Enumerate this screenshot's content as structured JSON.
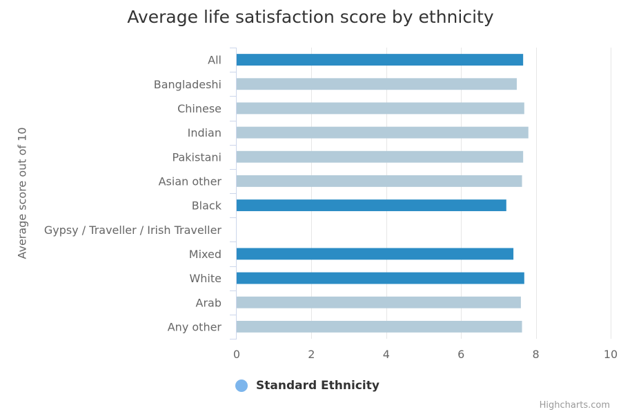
{
  "chart_data": {
    "type": "bar",
    "orientation": "horizontal",
    "title": "Average life satisfaction score by ethnicity",
    "ylabel": "Average score out of 10",
    "xlim": [
      0,
      10
    ],
    "x_ticks": [
      0,
      2,
      4,
      6,
      8,
      10
    ],
    "grid": true,
    "categories": [
      "All",
      "Bangladeshi",
      "Chinese",
      "Indian",
      "Pakistani",
      "Asian other",
      "Black",
      "Gypsy / Traveller / Irish Traveller",
      "Mixed",
      "White",
      "Arab",
      "Any other"
    ],
    "values": [
      7.66,
      7.49,
      7.69,
      7.8,
      7.66,
      7.63,
      7.21,
      null,
      7.4,
      7.69,
      7.6,
      7.63
    ],
    "highlighted": [
      true,
      false,
      false,
      false,
      false,
      false,
      true,
      false,
      true,
      true,
      false,
      false
    ],
    "colors": {
      "highlight": "#2b8cc4",
      "standard": "#b3cbd9",
      "legend": "#7cb5ec",
      "grid": "#e6e6e6",
      "axis": "#ccd6eb"
    },
    "legend": {
      "position": "bottom",
      "entries": [
        {
          "name": "Standard Ethnicity"
        }
      ]
    }
  },
  "credits": "Highcharts.com"
}
